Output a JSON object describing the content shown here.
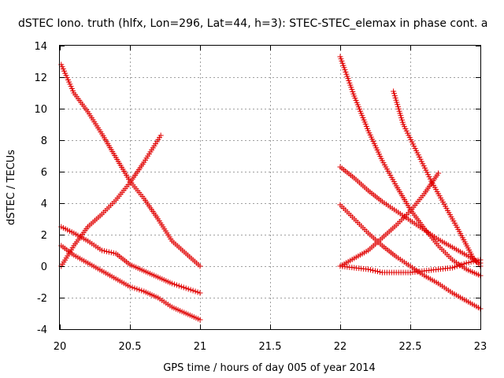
{
  "chart_data": {
    "type": "scatter",
    "title": "dSTEC Iono. truth (hlfx, Lon=296, Lat=44, h=3): STEC-STEC_elemax in phase cont. a",
    "xlabel": "GPS time / hours of day 005 of year 2014",
    "ylabel": "dSTEC  / TECUs",
    "xlim": [
      20,
      23
    ],
    "ylim": [
      -4,
      14
    ],
    "x_ticks": [
      20,
      20.5,
      21,
      21.5,
      22,
      22.5,
      23
    ],
    "x_tick_labels": [
      "20",
      "20.5",
      "21",
      "21.5",
      "22",
      "22.5",
      "23"
    ],
    "y_ticks": [
      -4,
      -2,
      0,
      2,
      4,
      6,
      8,
      10,
      12,
      14
    ],
    "y_tick_labels": [
      "-4",
      "-2",
      "0",
      "2",
      "4",
      "6",
      "8",
      "10",
      "12",
      "14"
    ],
    "grid": true,
    "marker": "plus",
    "marker_color": "#e00000",
    "series": [
      {
        "x": [
          20.01,
          20.1,
          20.2,
          20.3,
          20.4,
          20.5,
          20.6,
          20.7,
          20.8,
          20.9,
          21.0
        ],
        "y": [
          12.8,
          11.0,
          9.8,
          8.4,
          6.9,
          5.4,
          4.3,
          3.0,
          1.6,
          0.8,
          0.0
        ]
      },
      {
        "x": [
          20.01,
          20.1,
          20.2,
          20.3,
          20.4,
          20.5,
          20.6,
          20.72
        ],
        "y": [
          0.0,
          1.3,
          2.5,
          3.3,
          4.2,
          5.3,
          6.6,
          8.3
        ]
      },
      {
        "x": [
          20.01,
          20.1,
          20.2,
          20.3,
          20.4,
          20.5,
          20.6,
          20.7,
          20.8,
          20.9,
          21.0
        ],
        "y": [
          2.5,
          2.1,
          1.6,
          1.0,
          0.8,
          0.1,
          -0.3,
          -0.7,
          -1.1,
          -1.4,
          -1.7
        ]
      },
      {
        "x": [
          20.01,
          20.1,
          20.2,
          20.3,
          20.4,
          20.5,
          20.6,
          20.7,
          20.8,
          20.9,
          21.0
        ],
        "y": [
          1.3,
          0.7,
          0.2,
          -0.3,
          -0.8,
          -1.3,
          -1.6,
          -2.0,
          -2.6,
          -3.0,
          -3.4
        ]
      },
      {
        "x": [
          22.0,
          22.1,
          22.2,
          22.3,
          22.4,
          22.5,
          22.6,
          22.7,
          22.8,
          22.9,
          23.0
        ],
        "y": [
          13.3,
          10.8,
          8.6,
          6.7,
          5.1,
          3.6,
          2.4,
          1.3,
          0.4,
          -0.2,
          -0.6
        ]
      },
      {
        "x": [
          22.38,
          22.45,
          22.55,
          22.65,
          22.75,
          22.85,
          22.95,
          23.0
        ],
        "y": [
          11.1,
          9.0,
          7.2,
          5.4,
          3.8,
          2.2,
          0.5,
          0.0
        ]
      },
      {
        "x": [
          22.0,
          22.1,
          22.2,
          22.3,
          22.4,
          22.5,
          22.6,
          22.7,
          22.8,
          22.9,
          23.0
        ],
        "y": [
          6.3,
          5.6,
          4.8,
          4.1,
          3.5,
          2.9,
          2.3,
          1.7,
          1.2,
          0.7,
          0.2
        ]
      },
      {
        "x": [
          22.0,
          22.1,
          22.2,
          22.3,
          22.4,
          22.5,
          22.6,
          22.7,
          22.8,
          22.9,
          23.0
        ],
        "y": [
          3.9,
          3.0,
          2.1,
          1.3,
          0.6,
          0.0,
          -0.6,
          -1.1,
          -1.7,
          -2.2,
          -2.7
        ]
      },
      {
        "x": [
          22.0,
          22.1,
          22.2,
          22.3,
          22.4,
          22.5,
          22.6,
          22.7
        ],
        "y": [
          0.0,
          0.5,
          1.0,
          1.8,
          2.6,
          3.5,
          4.6,
          5.9
        ]
      },
      {
        "x": [
          22.0,
          22.1,
          22.2,
          22.3,
          22.4,
          22.5,
          22.6,
          22.7,
          22.8,
          22.9,
          23.0
        ],
        "y": [
          0.0,
          -0.1,
          -0.2,
          -0.4,
          -0.4,
          -0.4,
          -0.3,
          -0.2,
          -0.1,
          0.2,
          0.4
        ]
      }
    ]
  }
}
